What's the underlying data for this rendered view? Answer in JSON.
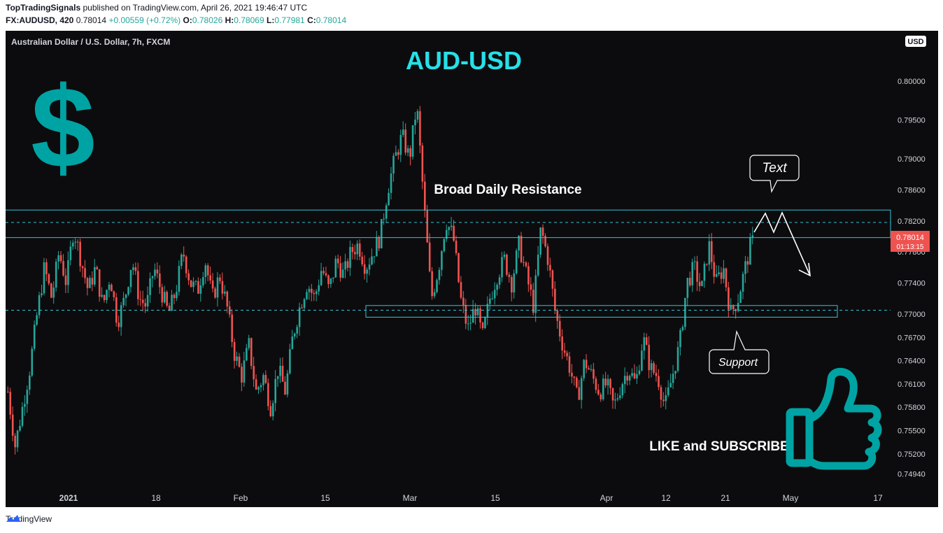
{
  "header": {
    "author": "TopTradingSignals",
    "published_text": "published on TradingView.com, April 26, 2021 19:46:47 UTC",
    "symbol": "FX:AUDUSD, 420",
    "last": "0.78014",
    "change": "+0.00559 (+0.72%)",
    "o_label": "O:",
    "o": "0.78026",
    "h_label": "H:",
    "h": "0.78069",
    "l_label": "L:",
    "l": "0.77981",
    "c_label": "C:",
    "c": "0.78014"
  },
  "chart": {
    "instrument_label": "Australian Dollar / U.S. Dollar, 7h, FXCM",
    "currency_badge": "USD",
    "title_overlay": "AUD-USD",
    "resistance_label": "Broad Daily Resistance",
    "text_bubble": "Text",
    "support_bubble": "Support",
    "cta": "LIKE and SUBSCRIBE",
    "price_tag": "0.78014",
    "countdown": "01:13:15",
    "dollar_glyph": "$"
  },
  "chart_data": {
    "type": "candlestick",
    "y_ticks": [
      "0.80000",
      "0.79500",
      "0.79000",
      "0.78600",
      "0.78200",
      "0.77800",
      "0.77400",
      "0.77000",
      "0.76700",
      "0.76400",
      "0.76100",
      "0.75800",
      "0.75500",
      "0.75200",
      "0.74940"
    ],
    "x_ticks": [
      "2021",
      "18",
      "Feb",
      "15",
      "Mar",
      "15",
      "Apr",
      "12",
      "21",
      "May",
      "17"
    ],
    "ylim": [
      0.7485,
      0.8045
    ],
    "last_price": 0.78014,
    "levels": {
      "resistance_zone": [
        0.77985,
        0.7834
      ],
      "resistance_dashed": 0.7818,
      "support_zone": [
        0.7696,
        0.7711
      ],
      "support_dashed": 0.7705
    },
    "colors": {
      "up": "#26a69a",
      "down": "#ef5350",
      "accent": "#00bcd4",
      "teal_icon": "#00a3a3"
    },
    "candle_path": [
      0.76,
      0.753,
      0.758,
      0.763,
      0.77,
      0.776,
      0.772,
      0.778,
      0.774,
      0.781,
      0.777,
      0.773,
      0.776,
      0.771,
      0.775,
      0.769,
      0.772,
      0.777,
      0.772,
      0.771,
      0.776,
      0.773,
      0.77,
      0.773,
      0.778,
      0.774,
      0.773,
      0.777,
      0.772,
      0.775,
      0.771,
      0.765,
      0.762,
      0.766,
      0.76,
      0.762,
      0.758,
      0.763,
      0.76,
      0.767,
      0.771,
      0.774,
      0.772,
      0.776,
      0.773,
      0.777,
      0.775,
      0.778,
      0.779,
      0.776,
      0.778,
      0.78,
      0.786,
      0.79,
      0.793,
      0.79,
      0.797,
      0.784,
      0.772,
      0.776,
      0.782,
      0.78,
      0.772,
      0.768,
      0.771,
      0.767,
      0.772,
      0.775,
      0.777,
      0.774,
      0.779,
      0.775,
      0.771,
      0.781,
      0.777,
      0.77,
      0.766,
      0.763,
      0.759,
      0.764,
      0.762,
      0.76,
      0.761,
      0.758,
      0.761,
      0.763,
      0.761,
      0.767,
      0.763,
      0.762,
      0.758,
      0.762,
      0.766,
      0.774,
      0.776,
      0.773,
      0.779,
      0.774,
      0.776,
      0.77,
      0.772,
      0.776,
      0.78
    ]
  }
}
